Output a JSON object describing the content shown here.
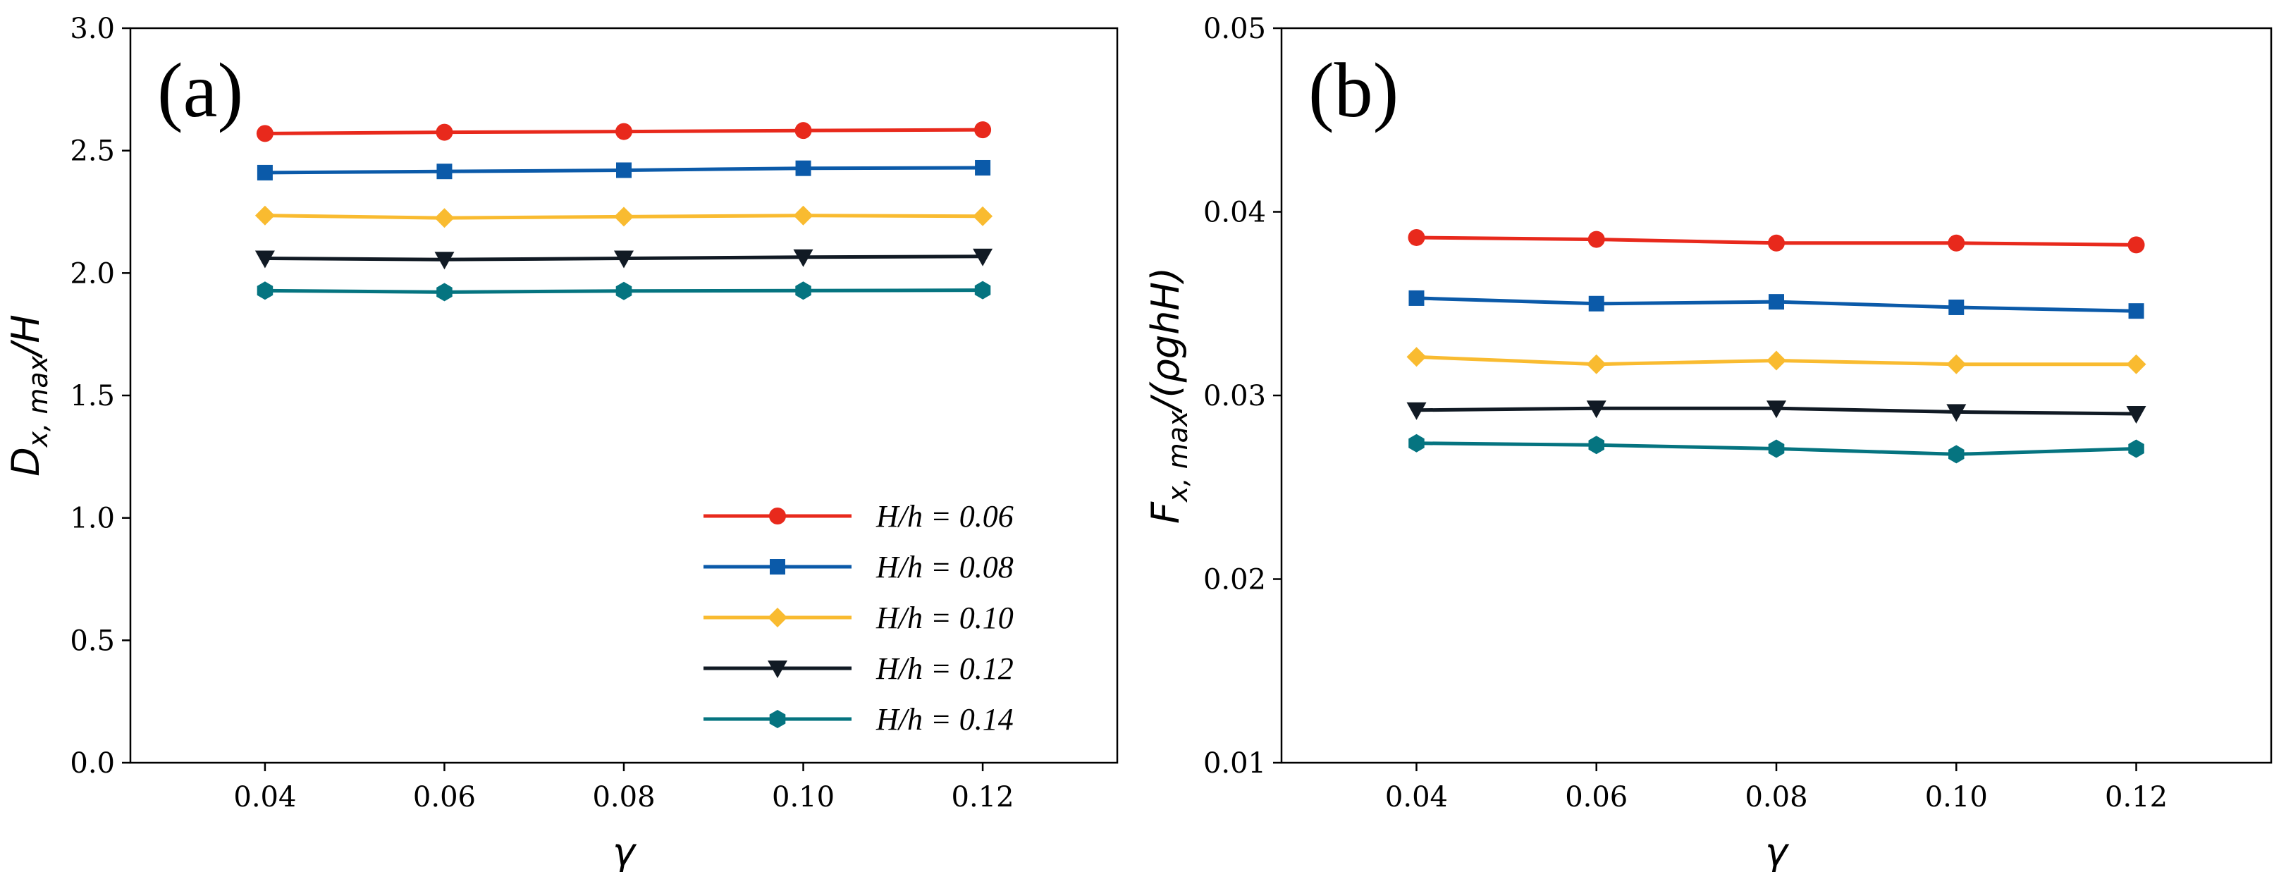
{
  "chart_data": [
    {
      "type": "line",
      "panel_label": "(a)",
      "xlabel": "γ",
      "ylabel": "D_x,max/H",
      "ylabel_parts": {
        "main": "D",
        "sub": "x, max",
        "rest": "/H"
      },
      "x": [
        0.04,
        0.06,
        0.08,
        0.1,
        0.12
      ],
      "xlim": [
        0.025,
        0.135
      ],
      "ylim": [
        0.0,
        3.0
      ],
      "xticks": [
        "0.04",
        "0.06",
        "0.08",
        "0.10",
        "0.12"
      ],
      "yticks": [
        "0.0",
        "0.5",
        "1.0",
        "1.5",
        "2.0",
        "2.5",
        "3.0"
      ],
      "legend_position": "lower-right",
      "series": [
        {
          "name": "H/h = 0.06",
          "color": "#e8291c",
          "marker": "circle",
          "values": [
            2.57,
            2.575,
            2.578,
            2.582,
            2.585
          ]
        },
        {
          "name": "H/h = 0.08",
          "color": "#0b5aa9",
          "marker": "square",
          "values": [
            2.41,
            2.415,
            2.42,
            2.428,
            2.43
          ]
        },
        {
          "name": "H/h = 0.10",
          "color": "#f9bb30",
          "marker": "diamond",
          "values": [
            2.235,
            2.225,
            2.23,
            2.235,
            2.232
          ]
        },
        {
          "name": "H/h = 0.12",
          "color": "#111a24",
          "marker": "triangle",
          "values": [
            2.06,
            2.055,
            2.06,
            2.065,
            2.068
          ]
        },
        {
          "name": "H/h = 0.14",
          "color": "#057480",
          "marker": "hexagon",
          "values": [
            1.928,
            1.922,
            1.927,
            1.928,
            1.93
          ]
        }
      ]
    },
    {
      "type": "line",
      "panel_label": "(b)",
      "xlabel": "γ",
      "ylabel": "F_x,max/(ρghH)",
      "ylabel_parts": {
        "main": "F",
        "sub": "x, max",
        "rest": "/(ρghH)"
      },
      "x": [
        0.04,
        0.06,
        0.08,
        0.1,
        0.12
      ],
      "xlim": [
        0.025,
        0.135
      ],
      "ylim": [
        0.01,
        0.05
      ],
      "xticks": [
        "0.04",
        "0.06",
        "0.08",
        "0.10",
        "0.12"
      ],
      "yticks": [
        "0.01",
        "0.02",
        "0.03",
        "0.04",
        "0.05"
      ],
      "series": [
        {
          "name": "H/h = 0.06",
          "color": "#e8291c",
          "marker": "circle",
          "values": [
            0.0386,
            0.0385,
            0.0383,
            0.0383,
            0.0382
          ]
        },
        {
          "name": "H/h = 0.08",
          "color": "#0b5aa9",
          "marker": "square",
          "values": [
            0.0353,
            0.035,
            0.0351,
            0.0348,
            0.0346
          ]
        },
        {
          "name": "H/h = 0.10",
          "color": "#f9bb30",
          "marker": "diamond",
          "values": [
            0.0321,
            0.0317,
            0.0319,
            0.0317,
            0.0317
          ]
        },
        {
          "name": "H/h = 0.12",
          "color": "#111a24",
          "marker": "triangle",
          "values": [
            0.0292,
            0.0293,
            0.0293,
            0.0291,
            0.029
          ]
        },
        {
          "name": "H/h = 0.14",
          "color": "#057480",
          "marker": "hexagon",
          "values": [
            0.0274,
            0.0273,
            0.0271,
            0.0268,
            0.0271
          ]
        }
      ]
    }
  ]
}
